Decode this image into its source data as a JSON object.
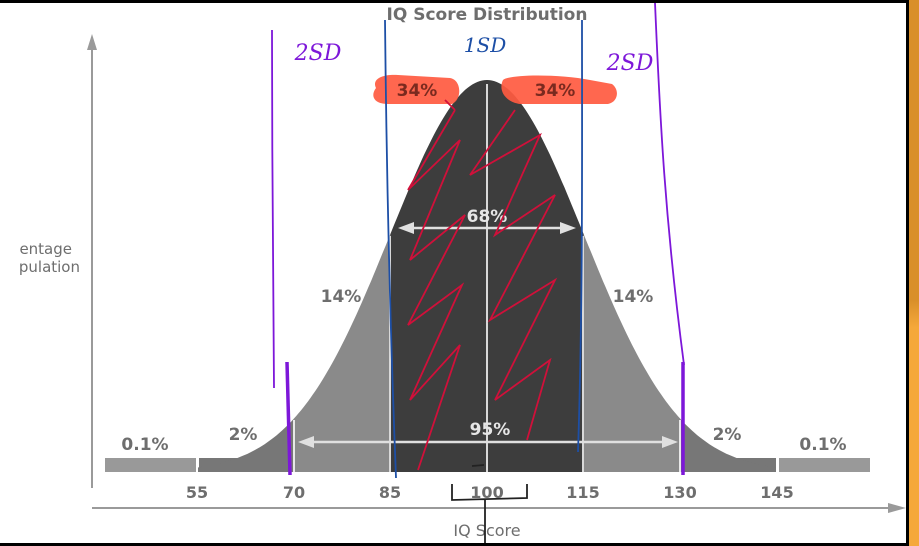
{
  "chart_data": {
    "type": "area",
    "title": "IQ Score Distribution",
    "xlabel": "IQ Score",
    "ylabel": "Percentage of Population",
    "ylabel_visible_lines": [
      "entage",
      "pulation"
    ],
    "x_ticks": [
      55,
      70,
      85,
      100,
      115,
      130,
      145
    ],
    "mean": 100,
    "sd": 15,
    "bands": [
      {
        "range": [
          40,
          55
        ],
        "label": "0.1%",
        "shade": "#999999"
      },
      {
        "range": [
          55,
          70
        ],
        "label": "2%",
        "shade": "#777777"
      },
      {
        "range": [
          70,
          85
        ],
        "label": "14%",
        "shade": "#8a8a8a"
      },
      {
        "range": [
          85,
          100
        ],
        "label": "34%",
        "shade": "#3d3d3d"
      },
      {
        "range": [
          100,
          115
        ],
        "label": "34%",
        "shade": "#3d3d3d"
      },
      {
        "range": [
          115,
          130
        ],
        "label": "14%",
        "shade": "#8a8a8a"
      },
      {
        "range": [
          130,
          145
        ],
        "label": "2%",
        "shade": "#777777"
      },
      {
        "range": [
          145,
          160
        ],
        "label": "0.1%",
        "shade": "#999999"
      }
    ],
    "range_annotations": [
      {
        "range": [
          85,
          115
        ],
        "label": "68%"
      },
      {
        "range": [
          70,
          130
        ],
        "label": "95%"
      }
    ],
    "handwritten_annotations": [
      {
        "text": "2SD",
        "color": "#7d17d9",
        "position": "left"
      },
      {
        "text": "1SD",
        "color": "#1d4fa6",
        "position": "center"
      },
      {
        "text": "2SD",
        "color": "#7d17d9",
        "position": "right"
      }
    ],
    "highlight_color": "#ff5a40",
    "grid": false,
    "legend": null
  },
  "labels": {
    "title": "IQ Score Distribution",
    "xlabel": "IQ Score",
    "ylabel_line1": "entage",
    "ylabel_line2": "pulation",
    "ticks": [
      "55",
      "70",
      "85",
      "100",
      "115",
      "130",
      "145"
    ],
    "pct_tail_left": "0.1%",
    "pct_2_left": "2%",
    "pct_14_left": "14%",
    "pct_34_left": "34%",
    "pct_34_right": "34%",
    "pct_14_right": "14%",
    "pct_2_right": "2%",
    "pct_tail_right": "0.1%",
    "pct_68": "68%",
    "pct_95": "95%",
    "note_2sd_left": "2SD",
    "note_1sd": "1SD",
    "note_2sd_right": "2SD"
  }
}
